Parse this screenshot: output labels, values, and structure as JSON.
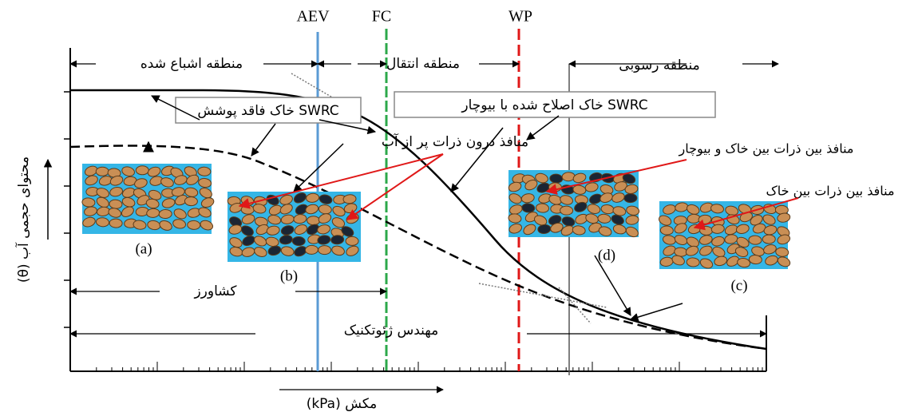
{
  "labels": {
    "aev": "AEV",
    "fc": "FC",
    "wp": "WP"
  },
  "zones": [
    "منطقه اشباع شده",
    "منطقه انتقال",
    "منطقه رسوبی"
  ],
  "curve_labels": {
    "uncovered": "SWRC خاک فاقد پوشش",
    "biochar": "SWRC خاک اصلاح شده با بیوچار"
  },
  "annotations": {
    "intra_pores": "منافذ درون ذرات پر از آب",
    "soil_biochar_pores": "منافذ بین ذرات بین خاک و بیوچار",
    "soil_pores": "منافذ بین ذرات بین خاک"
  },
  "samples": [
    "(a)",
    "(b)",
    "(c)",
    "(d)"
  ],
  "users": {
    "farmer": "کشاورز",
    "geotechnical": "مهندس ژئوتکنیک"
  },
  "axes": {
    "y_label": "محتوای حجمی آب (θ)",
    "x_label": "مکش (kPa)"
  }
}
